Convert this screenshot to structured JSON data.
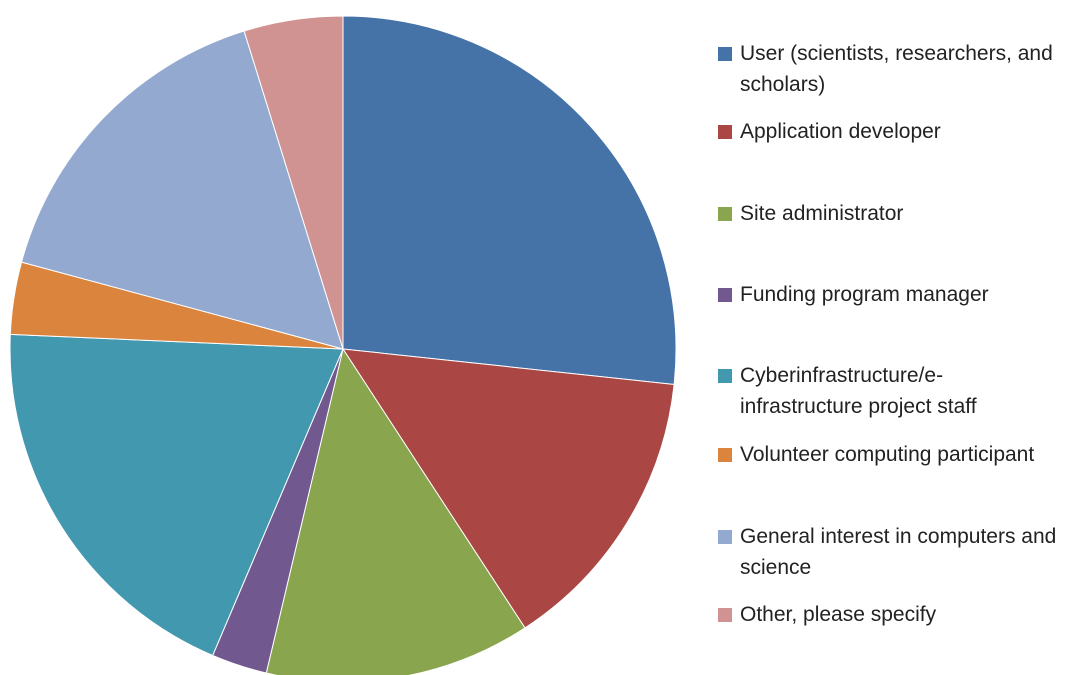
{
  "chart_data": {
    "type": "pie",
    "categories": [
      "User (scientists, researchers, and scholars)",
      "Application developer",
      "Site administrator",
      "Funding program manager",
      "Cyberinfrastructure/e-infrastructure project staff",
      "Volunteer computing participant",
      "General interest in computers and science",
      "Other, please specify"
    ],
    "values": [
      26.7,
      14.1,
      12.9,
      2.7,
      19.3,
      3.5,
      16.0,
      4.8
    ],
    "colors": [
      "#4572a7",
      "#aa4643",
      "#89a54e",
      "#71588f",
      "#4198af",
      "#db843d",
      "#93a9cf",
      "#d19392"
    ],
    "legend": "right"
  }
}
